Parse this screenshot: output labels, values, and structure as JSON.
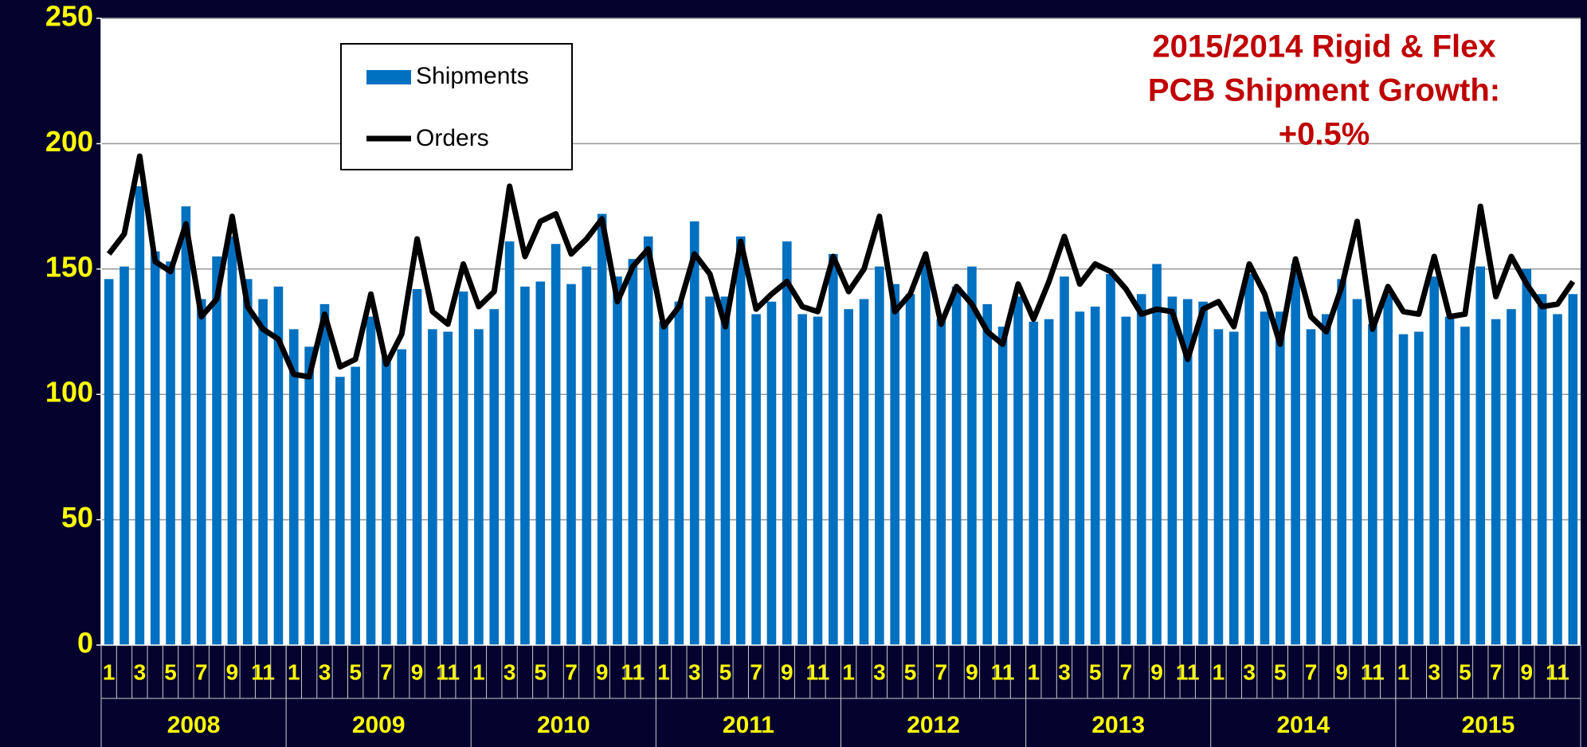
{
  "chart_data": {
    "type": "bar",
    "title": [
      "2015/2014 Rigid & Flex",
      "PCB Shipment Growth:",
      "+0.5%"
    ],
    "categories": [
      "1",
      null,
      "3",
      null,
      "5",
      null,
      "7",
      null,
      "9",
      null,
      "11",
      null,
      "1",
      null,
      "3",
      null,
      "5",
      null,
      "7",
      null,
      "9",
      null,
      "11",
      null,
      "1",
      null,
      "3",
      null,
      "5",
      null,
      "7",
      null,
      "9",
      null,
      "11",
      null,
      "1",
      null,
      "3",
      null,
      "5",
      null,
      "7",
      null,
      "9",
      null,
      "11",
      null,
      "1",
      null,
      "3",
      null,
      "5",
      null,
      "7",
      null,
      "9",
      null,
      "11",
      null,
      "1",
      null,
      "3",
      null,
      "5",
      null,
      "7",
      null,
      "9",
      null,
      "11",
      null,
      "1",
      null,
      "3",
      null,
      "5",
      null,
      "7",
      null,
      "9",
      null,
      "11",
      null,
      "1",
      null,
      "3",
      null,
      "5",
      null,
      "7",
      null,
      "9",
      null,
      "11",
      null
    ],
    "years": [
      "2008",
      "2009",
      "2010",
      "2011",
      "2012",
      "2013",
      "2014",
      "2015"
    ],
    "series": [
      {
        "name": "Shipments",
        "type": "bar",
        "color": "#0070c0",
        "values": [
          146,
          151,
          183,
          157,
          153,
          175,
          138,
          155,
          163,
          146,
          138,
          143,
          126,
          119,
          136,
          107,
          111,
          131,
          115,
          118,
          142,
          126,
          125,
          141,
          126,
          134,
          161,
          143,
          145,
          160,
          144,
          151,
          172,
          147,
          154,
          163,
          129,
          137,
          169,
          139,
          139,
          163,
          132,
          137,
          161,
          132,
          131,
          156,
          134,
          138,
          151,
          144,
          140,
          153,
          130,
          143,
          151,
          136,
          127,
          139,
          129,
          130,
          147,
          133,
          135,
          148,
          131,
          140,
          152,
          139,
          138,
          137,
          126,
          125,
          148,
          133,
          133,
          152,
          126,
          132,
          146,
          138,
          128,
          140,
          124,
          125,
          147,
          131,
          127,
          151,
          130,
          134,
          150,
          140,
          132,
          140
        ]
      },
      {
        "name": "Orders",
        "type": "line",
        "color": "#000000",
        "values": [
          156,
          164,
          195,
          153,
          149,
          168,
          131,
          138,
          171,
          135,
          126,
          122,
          108,
          107,
          132,
          111,
          114,
          140,
          112,
          124,
          162,
          133,
          128,
          152,
          135,
          141,
          183,
          155,
          169,
          172,
          156,
          162,
          170,
          137,
          151,
          158,
          127,
          135,
          156,
          148,
          127,
          161,
          134,
          140,
          145,
          135,
          133,
          155,
          141,
          150,
          171,
          133,
          140,
          156,
          128,
          143,
          136,
          125,
          120,
          144,
          130,
          145,
          163,
          144,
          152,
          149,
          142,
          132,
          134,
          133,
          114,
          134,
          137,
          127,
          152,
          140,
          120,
          154,
          131,
          125,
          143,
          169,
          126,
          143,
          133,
          132,
          155,
          131,
          132,
          175,
          139,
          155,
          144,
          135,
          136,
          145
        ]
      }
    ],
    "ylim": [
      0,
      250
    ],
    "yticks": [
      0,
      50,
      100,
      150,
      200,
      250
    ],
    "grid": true
  }
}
